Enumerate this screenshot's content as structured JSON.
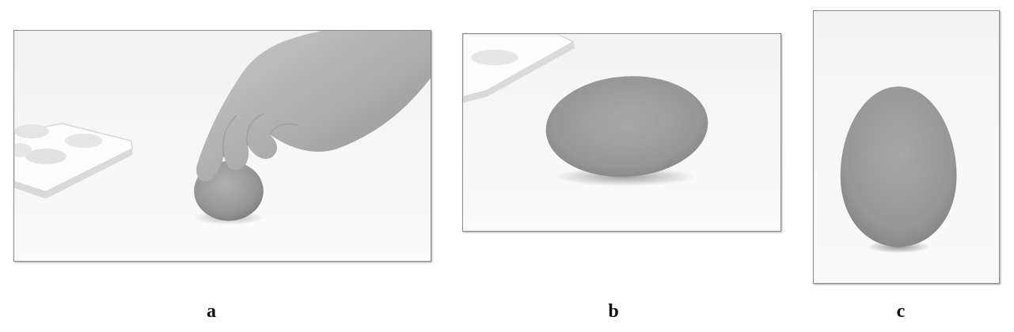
{
  "panels": [
    {
      "id": "a",
      "label": "a",
      "content": "hand-placing-egg-photo"
    },
    {
      "id": "b",
      "label": "b",
      "content": "egg-lying-on-side-photo"
    },
    {
      "id": "c",
      "label": "c",
      "content": "egg-standing-upright-photo"
    }
  ],
  "colors": {
    "background": "#ffffff",
    "frame": "#8a8a8a",
    "egg": "#9a9a9a",
    "caption": "#111111"
  }
}
